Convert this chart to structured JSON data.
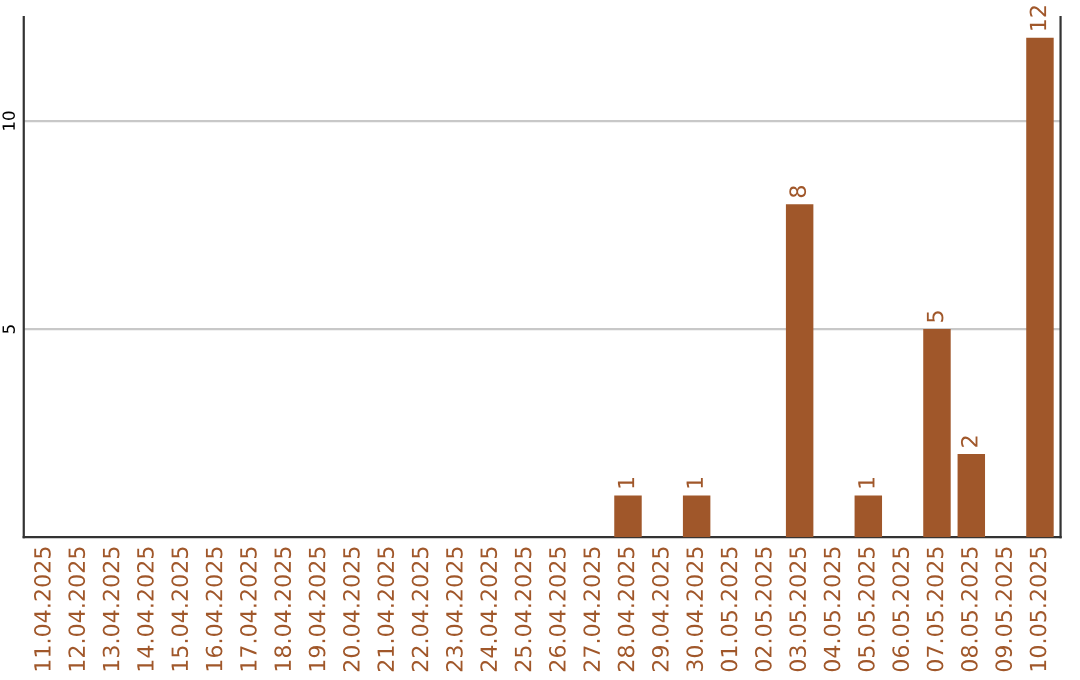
{
  "chart_data": {
    "type": "bar",
    "categories": [
      "11.04.2025",
      "12.04.2025",
      "13.04.2025",
      "14.04.2025",
      "15.04.2025",
      "16.04.2025",
      "17.04.2025",
      "18.04.2025",
      "19.04.2025",
      "20.04.2025",
      "21.04.2025",
      "22.04.2025",
      "23.04.2025",
      "24.04.2025",
      "25.04.2025",
      "26.04.2025",
      "27.04.2025",
      "28.04.2025",
      "29.04.2025",
      "30.04.2025",
      "01.05.2025",
      "02.05.2025",
      "03.05.2025",
      "04.05.2025",
      "05.05.2025",
      "06.05.2025",
      "07.05.2025",
      "08.05.2025",
      "09.05.2025",
      "10.05.2025"
    ],
    "values": [
      0,
      0,
      0,
      0,
      0,
      0,
      0,
      0,
      0,
      0,
      0,
      0,
      0,
      0,
      0,
      0,
      0,
      1,
      0,
      1,
      0,
      0,
      8,
      0,
      1,
      0,
      5,
      2,
      0,
      12
    ],
    "value_labels": [
      null,
      null,
      null,
      null,
      null,
      null,
      null,
      null,
      null,
      null,
      null,
      null,
      null,
      null,
      null,
      null,
      null,
      "1",
      null,
      "1",
      null,
      null,
      "8",
      null,
      "1",
      null,
      "5",
      "2",
      null,
      "12"
    ],
    "color": "#a0572a",
    "ylim": [
      0,
      12.5
    ],
    "yticks": [
      5,
      10
    ],
    "grid": "y",
    "legend": false
  }
}
